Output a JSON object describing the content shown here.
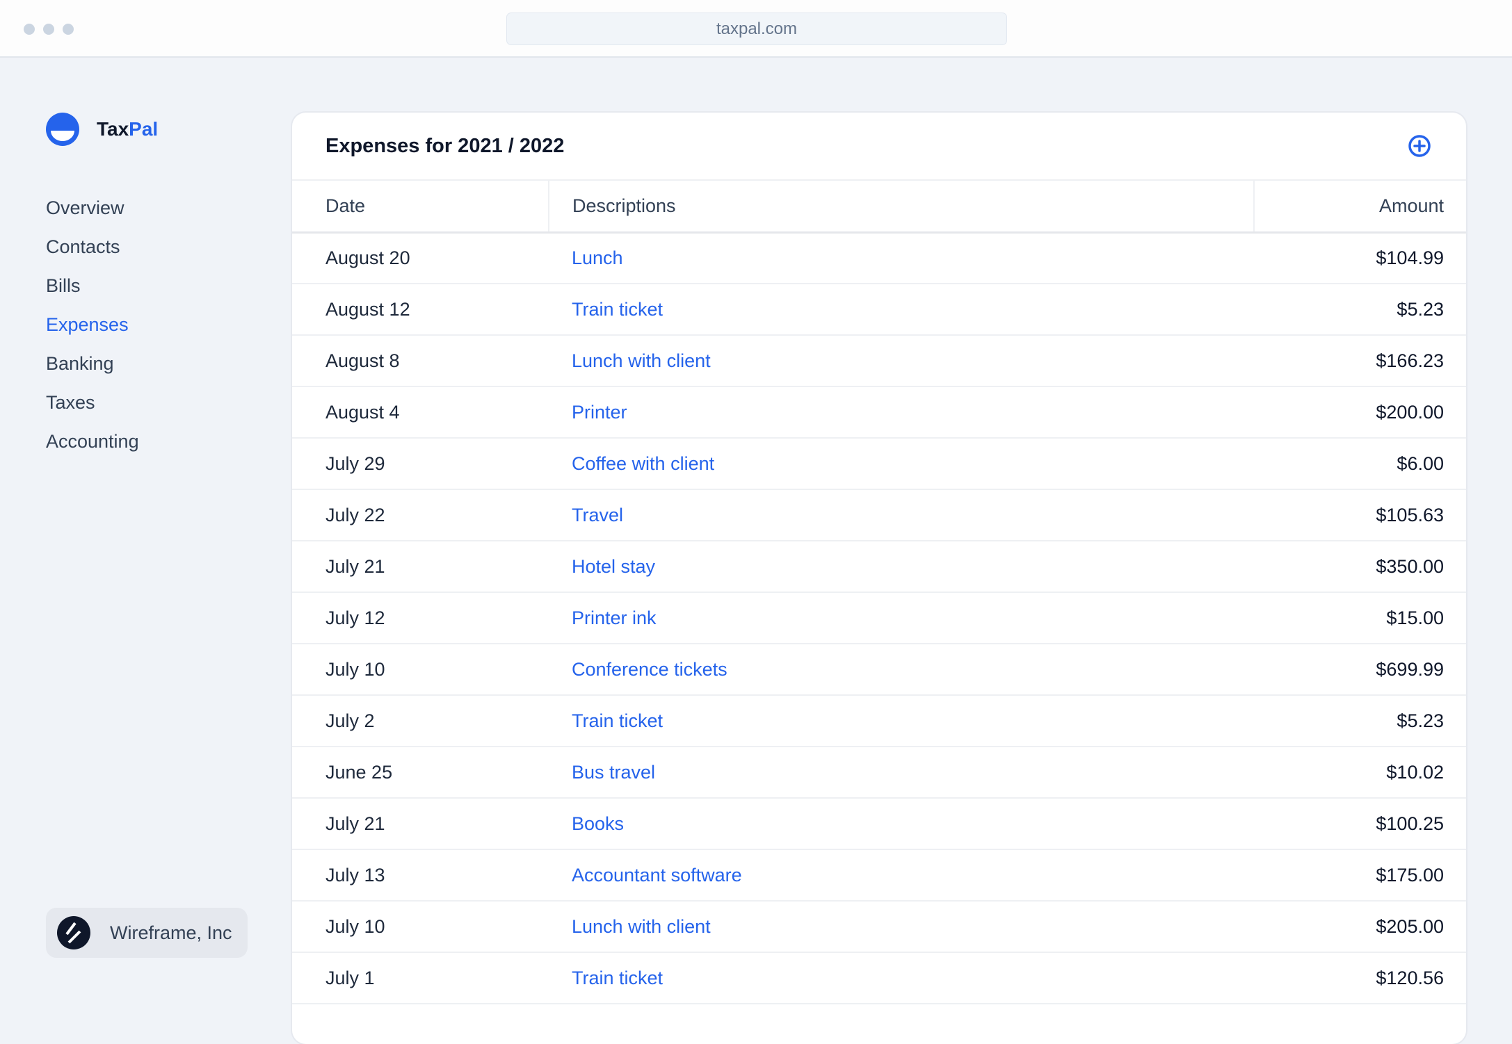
{
  "browser": {
    "url": "taxpal.com"
  },
  "brand": {
    "name_part1": "Tax",
    "name_part2": "Pal",
    "accent": "#2563eb"
  },
  "sidebar": {
    "items": [
      {
        "label": "Overview",
        "active": false
      },
      {
        "label": "Contacts",
        "active": false
      },
      {
        "label": "Bills",
        "active": false
      },
      {
        "label": "Expenses",
        "active": true
      },
      {
        "label": "Banking",
        "active": false
      },
      {
        "label": "Taxes",
        "active": false
      },
      {
        "label": "Accounting",
        "active": false
      }
    ],
    "org": {
      "name": "Wireframe, Inc",
      "icon": "wireframe-logo-icon"
    }
  },
  "main": {
    "title": "Expenses for 2021 / 2022",
    "add_icon": "plus-circle-icon",
    "columns": [
      "Date",
      "Descriptions",
      "Amount"
    ],
    "rows": [
      {
        "date": "August 20",
        "desc": "Lunch",
        "amount": "$104.99"
      },
      {
        "date": "August 12",
        "desc": "Train ticket",
        "amount": "$5.23"
      },
      {
        "date": "August 8",
        "desc": "Lunch with client",
        "amount": "$166.23"
      },
      {
        "date": "August 4",
        "desc": "Printer",
        "amount": "$200.00"
      },
      {
        "date": "July 29",
        "desc": "Coffee with client",
        "amount": "$6.00"
      },
      {
        "date": "July 22",
        "desc": "Travel",
        "amount": "$105.63"
      },
      {
        "date": "July 21",
        "desc": "Hotel stay",
        "amount": "$350.00"
      },
      {
        "date": "July 12",
        "desc": "Printer ink",
        "amount": "$15.00"
      },
      {
        "date": "July 10",
        "desc": "Conference tickets",
        "amount": "$699.99"
      },
      {
        "date": "July 2",
        "desc": "Train ticket",
        "amount": "$5.23"
      },
      {
        "date": "June 25",
        "desc": "Bus travel",
        "amount": "$10.02"
      },
      {
        "date": "July 21",
        "desc": "Books",
        "amount": "$100.25"
      },
      {
        "date": "July 13",
        "desc": "Accountant software",
        "amount": "$175.00"
      },
      {
        "date": "July 10",
        "desc": "Lunch with client",
        "amount": "$205.00"
      },
      {
        "date": "July 1",
        "desc": "Train ticket",
        "amount": "$120.56"
      }
    ]
  }
}
